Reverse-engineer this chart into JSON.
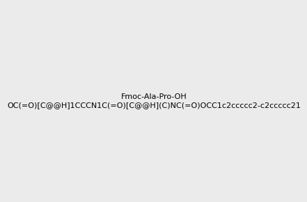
{
  "smiles": "OC(=O)[C@@H]1CCCN1C(=O)[C@@H](C)NC(=O)OCC1c2ccccc2-c2ccccc21",
  "image_size": 300,
  "background_color": "#ebebeb",
  "title": ""
}
